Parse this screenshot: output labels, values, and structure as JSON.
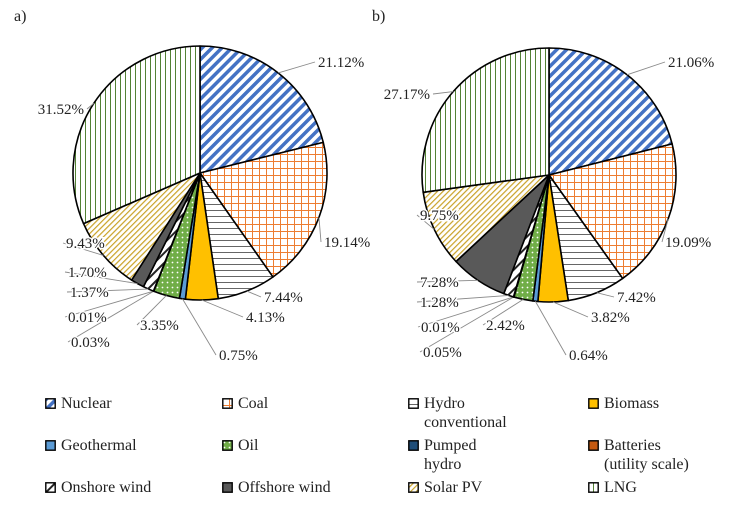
{
  "chart_data": [
    {
      "type": "pie",
      "panel": "a)",
      "categories": [
        "Nuclear",
        "Coal",
        "Hydro conventional",
        "Biomass",
        "Geothermal",
        "Oil",
        "Pumped hydro",
        "Batteries (utility scale)",
        "Onshore wind",
        "Offshore wind",
        "Solar PV",
        "LNG"
      ],
      "values": [
        21.12,
        19.14,
        7.44,
        4.13,
        0.75,
        3.35,
        0.03,
        0.01,
        1.37,
        1.7,
        9.43,
        31.52
      ],
      "labels": [
        "21.12%",
        "19.14%",
        "7.44%",
        "4.13%",
        "0.75%",
        "3.35%",
        "0.03%",
        "0.01%",
        "1.37%",
        "1.70%",
        "9.43%",
        "31.52%"
      ]
    },
    {
      "type": "pie",
      "panel": "b)",
      "categories": [
        "Nuclear",
        "Coal",
        "Hydro conventional",
        "Biomass",
        "Geothermal",
        "Oil",
        "Pumped hydro",
        "Batteries (utility scale)",
        "Onshore wind",
        "Offshore wind",
        "Solar PV",
        "LNG"
      ],
      "values": [
        21.06,
        19.09,
        7.42,
        3.82,
        0.64,
        2.42,
        0.05,
        0.01,
        1.28,
        7.28,
        9.75,
        27.17
      ],
      "labels": [
        "21.06%",
        "19.09%",
        "7.42%",
        "3.82%",
        "0.64%",
        "2.42%",
        "0.05%",
        "0.01%",
        "1.28%",
        "7.28%",
        "9.75%",
        "27.17%"
      ]
    }
  ],
  "legend": [
    {
      "label": "Nuclear",
      "pattern": "diag",
      "color": "#4472c4"
    },
    {
      "label": "Coal",
      "pattern": "grid",
      "color": "#ed7d31"
    },
    {
      "label": "Hydro\nconventional",
      "pattern": "hlines",
      "color": "#666666"
    },
    {
      "label": "Biomass",
      "pattern": "solid",
      "color": "#ffc000"
    },
    {
      "label": "Geothermal",
      "pattern": "solid",
      "color": "#5b9bd5"
    },
    {
      "label": "Oil",
      "pattern": "dots",
      "color": "#70ad47"
    },
    {
      "label": "Pumped\nhydro",
      "pattern": "solid",
      "color": "#1f4e79"
    },
    {
      "label": "Batteries\n(utility scale)",
      "pattern": "solid",
      "color": "#c55a11"
    },
    {
      "label": "Onshore wind",
      "pattern": "bigdiag",
      "color": "#222222"
    },
    {
      "label": "Offshore wind",
      "pattern": "solid",
      "color": "#595959"
    },
    {
      "label": "Solar PV",
      "pattern": "fine",
      "color": "#c9a227"
    },
    {
      "label": "LNG",
      "pattern": "vlines",
      "color": "#548235"
    }
  ]
}
